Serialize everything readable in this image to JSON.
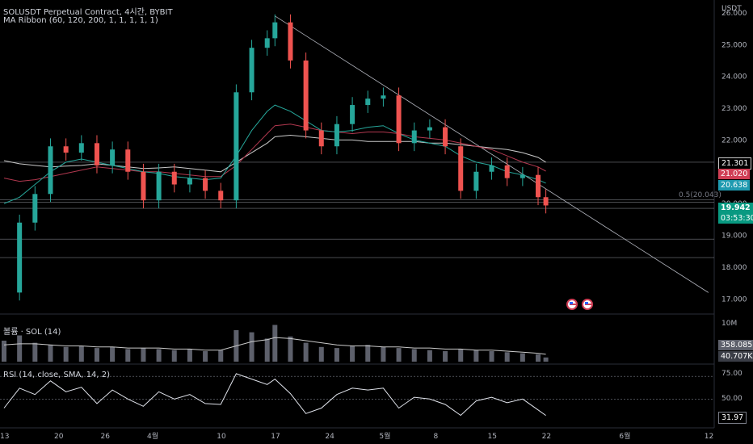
{
  "header": {
    "title": "SOLUSDT Perpetual Contract, 4시간, BYBIT",
    "indicator": "MA Ribbon (60, 120, 200, 1, 1, 1, 1, 1)",
    "currency": "USDT"
  },
  "volume_pane": {
    "label": "볼륨 · SOL (14)",
    "top_tick": "10M",
    "value1": "358.085K",
    "value2": "40.707K"
  },
  "rsi_pane": {
    "label": "RSI (14, close, SMA, 14, 2)",
    "ticks": [
      "75.00",
      "50.00"
    ],
    "current": "31.97"
  },
  "price_tags": {
    "ma200": "21.301",
    "ma120": "21.020",
    "ma60": "20.638",
    "last": "19.942",
    "countdown": "03:53:30",
    "fib": "0.5(20.043)"
  },
  "colors": {
    "up": "#26a69a",
    "down": "#ef5350",
    "ma200": "#c9c9c9",
    "ma120": "#b2384f",
    "ma60": "#26a69a",
    "bg": "#000000"
  },
  "event_icons": [
    "us-flag-icon",
    "us-flag-icon"
  ],
  "chart_data": {
    "type": "line",
    "price_axis": {
      "ticks": [
        "26.000",
        "25.000",
        "24.000",
        "23.000",
        "22.000",
        "21.000",
        "20.000",
        "19.000",
        "18.000",
        "17.000"
      ],
      "ylim": [
        16.6,
        26.2
      ]
    },
    "x_tick_labels": [
      "13",
      "20",
      "26",
      "4월",
      "10",
      "17",
      "24",
      "5월",
      "8",
      "15",
      "22",
      "6월",
      "12"
    ],
    "price": {
      "x": [
        "03-13",
        "03-15",
        "03-17",
        "03-19",
        "03-21",
        "03-23",
        "03-25",
        "03-27",
        "03-29",
        "03-31",
        "04-02",
        "04-04",
        "04-06",
        "04-08",
        "04-10",
        "04-12",
        "04-14",
        "04-16",
        "04-17",
        "04-19",
        "04-21",
        "04-23",
        "04-25",
        "04-27",
        "04-29",
        "05-01",
        "05-03",
        "05-05",
        "05-07",
        "05-09",
        "05-11",
        "05-13",
        "05-15",
        "05-17",
        "05-19",
        "05-21",
        "05-22"
      ],
      "close": [
        17.2,
        19.4,
        20.3,
        21.8,
        21.6,
        21.9,
        21.2,
        21.7,
        21.0,
        20.1,
        21.0,
        20.6,
        20.8,
        20.4,
        20.1,
        23.5,
        24.9,
        25.2,
        25.7,
        24.5,
        22.3,
        21.8,
        22.5,
        23.1,
        23.3,
        23.4,
        21.9,
        22.3,
        22.4,
        21.8,
        20.4,
        21.0,
        21.2,
        20.8,
        20.9,
        20.2,
        19.94
      ]
    },
    "ma200": [
      21.35,
      21.25,
      21.2,
      21.15,
      21.18,
      21.2,
      21.25,
      21.2,
      21.15,
      21.1,
      21.12,
      21.15,
      21.1,
      21.05,
      21.0,
      21.3,
      21.6,
      21.9,
      22.1,
      22.15,
      22.1,
      22.05,
      22.0,
      22.0,
      21.95,
      21.95,
      21.95,
      21.95,
      21.9,
      21.9,
      21.85,
      21.8,
      21.75,
      21.7,
      21.6,
      21.45,
      21.3
    ],
    "ma120": [
      20.8,
      20.7,
      20.75,
      20.85,
      20.95,
      21.05,
      21.15,
      21.1,
      21.05,
      21.0,
      21.0,
      20.95,
      20.9,
      20.85,
      20.85,
      21.2,
      21.7,
      22.2,
      22.45,
      22.5,
      22.4,
      22.3,
      22.25,
      22.2,
      22.25,
      22.25,
      22.2,
      22.1,
      22.05,
      22.0,
      21.9,
      21.8,
      21.7,
      21.5,
      21.3,
      21.15,
      21.02
    ],
    "ma60": [
      20.0,
      20.2,
      20.6,
      21.0,
      21.3,
      21.4,
      21.3,
      21.2,
      21.1,
      21.0,
      20.95,
      20.85,
      20.8,
      20.75,
      20.8,
      21.5,
      22.3,
      22.9,
      23.1,
      22.9,
      22.6,
      22.3,
      22.25,
      22.3,
      22.4,
      22.45,
      22.2,
      22.0,
      21.9,
      21.8,
      21.5,
      21.3,
      21.2,
      21.0,
      20.9,
      20.75,
      20.64
    ],
    "trendline": {
      "from": [
        "04-17",
        25.9
      ],
      "to": [
        "06-12",
        17.2
      ]
    },
    "horizontal_levels": [
      21.3,
      20.12,
      20.04,
      19.85,
      18.88,
      18.3
    ],
    "volume": [
      2.0,
      2.5,
      1.8,
      1.6,
      1.4,
      1.5,
      1.3,
      1.4,
      1.2,
      1.3,
      1.2,
      1.1,
      1.2,
      1.0,
      1.1,
      3.0,
      2.8,
      2.2,
      3.5,
      2.4,
      1.8,
      1.4,
      1.3,
      1.5,
      1.6,
      1.4,
      1.3,
      1.2,
      1.1,
      1.0,
      1.2,
      1.1,
      1.0,
      0.9,
      0.8,
      0.7,
      0.4
    ],
    "volume_ma": [
      1.6,
      1.7,
      1.7,
      1.6,
      1.5,
      1.5,
      1.4,
      1.4,
      1.3,
      1.3,
      1.3,
      1.2,
      1.2,
      1.1,
      1.1,
      1.5,
      1.9,
      2.1,
      2.3,
      2.2,
      2.0,
      1.8,
      1.6,
      1.5,
      1.5,
      1.4,
      1.4,
      1.3,
      1.3,
      1.2,
      1.2,
      1.1,
      1.1,
      1.0,
      0.9,
      0.8,
      0.7
    ],
    "rsi": [
      40,
      62,
      55,
      70,
      58,
      63,
      45,
      60,
      50,
      42,
      58,
      50,
      55,
      45,
      44,
      78,
      72,
      66,
      72,
      56,
      34,
      40,
      55,
      62,
      60,
      62,
      40,
      52,
      50,
      44,
      32,
      48,
      52,
      46,
      50,
      38,
      31.97
    ]
  }
}
